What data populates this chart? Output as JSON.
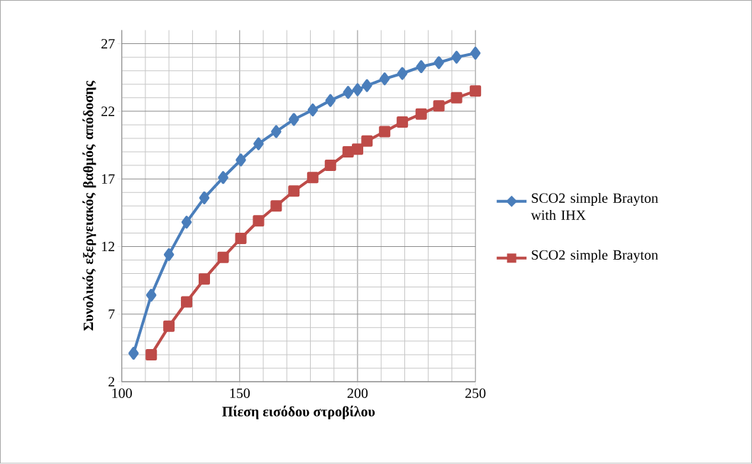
{
  "chart_data": {
    "type": "line",
    "xlabel": "Πίεση εισόδου στροβίλου",
    "ylabel": "Συνολικός εξεργειακός βαθμός απόδοσης",
    "xlim": [
      100,
      250
    ],
    "ylim": [
      2,
      28
    ],
    "xticks": [
      100,
      150,
      200,
      250
    ],
    "yticks": [
      2,
      7,
      12,
      17,
      22,
      27
    ],
    "grid": true,
    "legend": "right",
    "x": [
      105,
      112.5,
      120,
      127.5,
      135,
      143,
      150.5,
      158,
      165.5,
      173,
      181,
      188.5,
      196,
      200,
      204,
      211.5,
      219,
      227,
      234.5,
      242,
      250
    ],
    "series": [
      {
        "name": "SCO2 simple Brayton with IHX",
        "color": "#4a7ebb",
        "marker": "diamond",
        "values": [
          4.1,
          8.4,
          11.4,
          13.8,
          15.6,
          17.1,
          18.4,
          19.6,
          20.5,
          21.4,
          22.1,
          22.8,
          23.4,
          23.6,
          23.9,
          24.4,
          24.8,
          25.3,
          25.6,
          26.0,
          26.3
        ]
      },
      {
        "name": "SCO2 simple Brayton",
        "color": "#be4b48",
        "marker": "square",
        "values": [
          null,
          4.0,
          6.1,
          7.9,
          9.6,
          11.2,
          12.6,
          13.9,
          15.0,
          16.1,
          17.1,
          18.0,
          19.0,
          19.2,
          19.8,
          20.5,
          21.2,
          21.8,
          22.4,
          23.0,
          23.5
        ]
      }
    ]
  }
}
